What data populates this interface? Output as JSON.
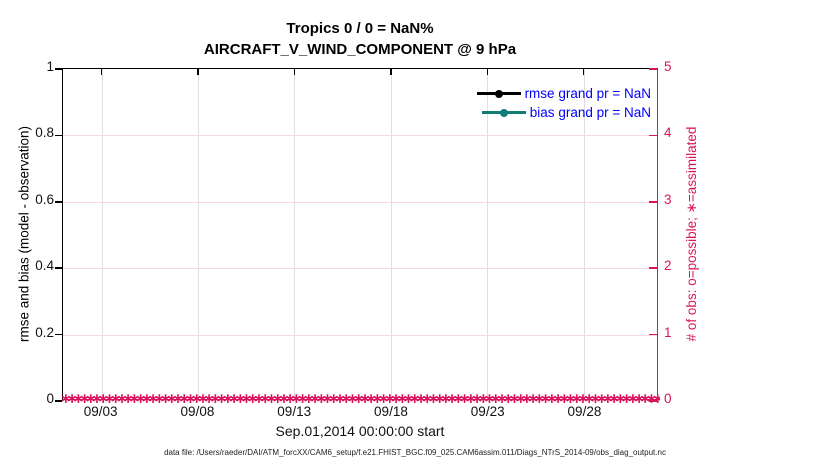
{
  "title": {
    "line1": "Tropics 0 / 0 = NaN%",
    "line2": "AIRCRAFT_V_WIND_COMPONENT @ 9 hPa"
  },
  "axes": {
    "xlabel": "Sep.01,2014 00:00:00 start",
    "ylabel_left": "rmse and bias (model - observation)",
    "ylabel_right": "# of obs: o=possible; ∗=assimilated"
  },
  "legend": {
    "rmse_label": "rmse grand pr = NaN",
    "bias_label": "bias grand pr = NaN"
  },
  "footer": "data file: /Users/raeder/DAI/ATM_forcXX/CAM6_setup/f.e21.FHIST_BGC.f09_025.CAM6assim.011/Diags_NTrS_2014-09/obs_diag_output.nc",
  "colors": {
    "axis_left": "#000000",
    "axis_right": "#D9145C",
    "legend_text": "#0000FF",
    "rmse_series": "#000000",
    "bias_series": "#0E7D78",
    "grid_vertical": "#E4DDDD",
    "grid_horizontal": "#F8D7E2",
    "obs_marker": "#D9145C"
  },
  "chart_data": {
    "type": "line",
    "title": "Tropics 0 / 0 = NaN%",
    "subtitle": "AIRCRAFT_V_WIND_COMPONENT @ 9 hPa",
    "xlabel": "Sep.01,2014 00:00:00 start",
    "ylabel_left": "rmse and bias (model - observation)",
    "ylabel_right": "# of obs: o=possible; ∗=assimilated",
    "grid": true,
    "legend_position": "top-right-inside",
    "xlim_days": [
      1,
      31.8
    ],
    "xticks": [
      {
        "day": 3,
        "label": "09/03"
      },
      {
        "day": 8,
        "label": "09/08"
      },
      {
        "day": 13,
        "label": "09/13"
      },
      {
        "day": 18,
        "label": "09/18"
      },
      {
        "day": 23,
        "label": "09/23"
      },
      {
        "day": 28,
        "label": "09/28"
      }
    ],
    "ylim_left": [
      0,
      1
    ],
    "yticks_left": [
      {
        "value": 0,
        "label": "0"
      },
      {
        "value": 0.2,
        "label": "0.2"
      },
      {
        "value": 0.4,
        "label": "0.4"
      },
      {
        "value": 0.6,
        "label": "0.6"
      },
      {
        "value": 0.8,
        "label": "0.8"
      },
      {
        "value": 1,
        "label": "1"
      }
    ],
    "ylim_right": [
      0,
      5
    ],
    "yticks_right": [
      {
        "value": 0,
        "label": "0"
      },
      {
        "value": 1,
        "label": "1"
      },
      {
        "value": 2,
        "label": "2"
      },
      {
        "value": 3,
        "label": "3"
      },
      {
        "value": 4,
        "label": "4"
      },
      {
        "value": 5,
        "label": "5"
      }
    ],
    "series": [
      {
        "name": "rmse",
        "legend_label": "rmse grand pr = NaN",
        "color": "#000000",
        "marker": "filled-circle",
        "values": []
      },
      {
        "name": "bias",
        "legend_label": "bias grand pr = NaN",
        "color": "#0E7D78",
        "marker": "filled-circle",
        "values": []
      },
      {
        "name": "obs_assimilated_count",
        "axis": "right",
        "marker": "∗",
        "color": "#D9145C",
        "constant_value": 0,
        "marker_count": 121
      }
    ]
  }
}
